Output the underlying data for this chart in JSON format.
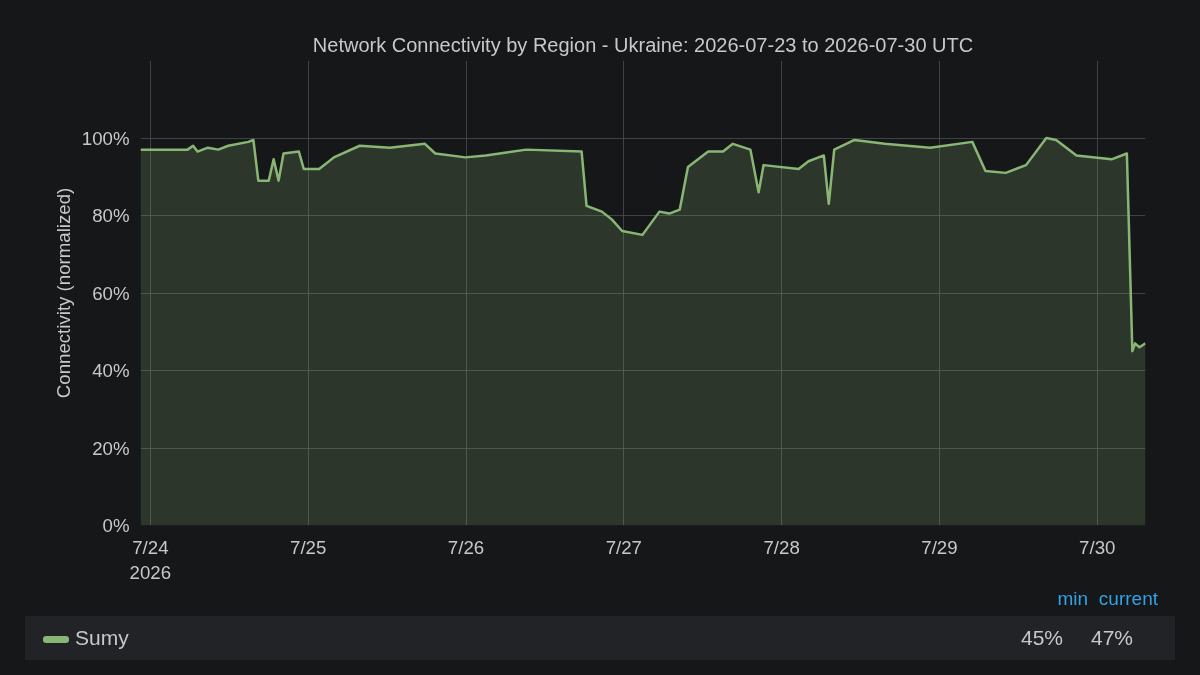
{
  "chart_data": {
    "type": "area",
    "title": "Network Connectivity by Region - Ukraine: 2026-07-23 to 2026-07-30 UTC",
    "ylabel": "Connectivity (normalized)",
    "x": [
      "2026-07-23T22:30",
      "2026-07-24T05:40",
      "2026-07-24T06:30",
      "2026-07-24T07:10",
      "2026-07-24T08:45",
      "2026-07-24T10:20",
      "2026-07-24T11:50",
      "2026-07-24T14:55",
      "2026-07-24T15:40",
      "2026-07-24T16:25",
      "2026-07-24T18:00",
      "2026-07-24T18:45",
      "2026-07-24T19:30",
      "2026-07-24T20:15",
      "2026-07-24T22:35",
      "2026-07-24T23:20",
      "2026-07-25T01:40",
      "2026-07-25T03:55",
      "2026-07-25T07:50",
      "2026-07-25T12:25",
      "2026-07-25T17:45",
      "2026-07-25T19:20",
      "2026-07-25T23:55",
      "2026-07-26T03:00",
      "2026-07-26T09:10",
      "2026-07-26T17:35",
      "2026-07-26T18:20",
      "2026-07-26T20:40",
      "2026-07-26T22:10",
      "2026-07-26T23:45",
      "2026-07-27T02:50",
      "2026-07-27T05:25",
      "2026-07-27T06:55",
      "2026-07-27T08:30",
      "2026-07-27T09:45",
      "2026-07-27T12:50",
      "2026-07-27T15:05",
      "2026-07-27T16:35",
      "2026-07-27T19:15",
      "2026-07-27T20:30",
      "2026-07-27T21:15",
      "2026-07-28T02:35",
      "2026-07-28T04:05",
      "2026-07-28T06:25",
      "2026-07-28T07:10",
      "2026-07-28T08:00",
      "2026-07-28T11:05",
      "2026-07-28T15:40",
      "2026-07-28T22:35",
      "2026-07-29T05:00",
      "2026-07-29T07:00",
      "2026-07-29T10:05",
      "2026-07-29T13:10",
      "2026-07-29T16:15",
      "2026-07-29T17:45",
      "2026-07-29T20:50",
      "2026-07-30T02:10",
      "2026-07-30T04:30",
      "2026-07-30T05:20",
      "2026-07-30T05:45",
      "2026-07-30T06:25",
      "2026-07-30T07:20"
    ],
    "series": [
      {
        "name": "Sumy",
        "color": "#8ab675",
        "values": [
          97,
          97,
          98,
          96.5,
          97.5,
          97,
          98,
          99,
          99.5,
          89,
          89,
          94.5,
          89,
          96,
          96.5,
          92,
          92,
          95,
          98,
          97.5,
          98.5,
          96,
          95,
          95.5,
          97,
          96.5,
          82.5,
          81,
          79,
          76,
          75,
          81,
          80.5,
          81.5,
          92.5,
          96.5,
          96.5,
          98.5,
          97,
          86,
          93,
          92,
          94,
          95.5,
          83,
          97,
          99.5,
          98.5,
          97.5,
          99,
          91.5,
          91,
          93,
          100,
          99.5,
          95.5,
          94.5,
          96,
          45,
          47,
          46,
          47
        ]
      }
    ],
    "xlim": [
      "2026-07-23T22:30",
      "2026-07-30T07:20"
    ],
    "xticks": [
      {
        "value": "2026-07-24",
        "label": "7/24\n2026"
      },
      {
        "value": "2026-07-25",
        "label": "7/25"
      },
      {
        "value": "2026-07-26",
        "label": "7/26"
      },
      {
        "value": "2026-07-27",
        "label": "7/27"
      },
      {
        "value": "2026-07-28",
        "label": "7/28"
      },
      {
        "value": "2026-07-29",
        "label": "7/29"
      },
      {
        "value": "2026-07-30",
        "label": "7/30"
      }
    ],
    "ylim": [
      0,
      120
    ],
    "yticks": [
      {
        "value": 0,
        "label": "0%"
      },
      {
        "value": 20,
        "label": "20%"
      },
      {
        "value": 40,
        "label": "40%"
      },
      {
        "value": 60,
        "label": "60%"
      },
      {
        "value": 80,
        "label": "80%"
      },
      {
        "value": 100,
        "label": "100%"
      }
    ],
    "grid": true,
    "legend": "bottom",
    "annotations": [
      "min",
      "current",
      "45%",
      "47%"
    ]
  }
}
